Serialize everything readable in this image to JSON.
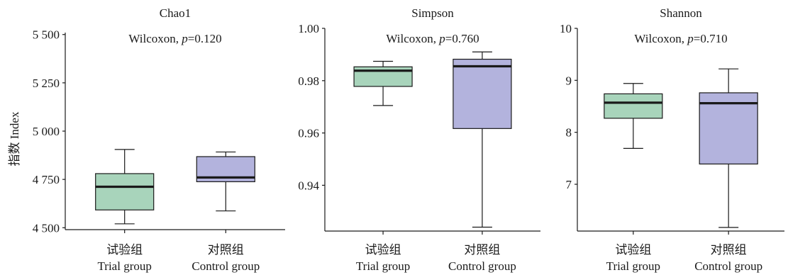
{
  "ylabel": "指数 Index",
  "colors": {
    "trial": "#a8d4bb",
    "control": "#b3b3dd",
    "ink": "#1a1a1a"
  },
  "groups": [
    {
      "cn": "试验组",
      "en": "Trial group"
    },
    {
      "cn": "对照组",
      "en": "Control group"
    }
  ],
  "chart_data": [
    {
      "type": "box",
      "title": "Chao1",
      "annotation_prefix": "Wilcoxon, ",
      "annotation_p_symbol": "p",
      "annotation_p_value": "=0.120",
      "ylim": [
        4490,
        5510
      ],
      "yticks": [
        4500,
        4750,
        5000,
        5250,
        5500
      ],
      "ytick_labels": [
        "4 500",
        "4 750",
        "5 000",
        "5 250",
        "5 500"
      ],
      "series": [
        {
          "whisker_low": 4520,
          "q1": 4592,
          "median": 4712,
          "q3": 4780,
          "whisker_high": 4905
        },
        {
          "whisker_low": 4587,
          "q1": 4738,
          "median": 4760,
          "q3": 4868,
          "whisker_high": 4892
        }
      ]
    },
    {
      "type": "box",
      "title": "Simpson",
      "annotation_prefix": "Wilcoxon, ",
      "annotation_p_symbol": "p",
      "annotation_p_value": "=0.760",
      "ylim": [
        0.9225,
        1.0
      ],
      "yticks": [
        0.94,
        0.96,
        0.98,
        1.0
      ],
      "ytick_labels": [
        "0.94",
        "0.96",
        "0.98",
        "1.00"
      ],
      "series": [
        {
          "whisker_low": 0.9705,
          "q1": 0.9778,
          "median": 0.9838,
          "q3": 0.9853,
          "whisker_high": 0.9874
        },
        {
          "whisker_low": 0.924,
          "q1": 0.9617,
          "median": 0.9855,
          "q3": 0.9882,
          "whisker_high": 0.991
        }
      ]
    },
    {
      "type": "box",
      "title": "Shannon",
      "annotation_prefix": "Wilcoxon, ",
      "annotation_p_symbol": "p",
      "annotation_p_value": "=0.710",
      "ylim": [
        6.1,
        10.0
      ],
      "yticks": [
        7,
        8,
        9,
        10
      ],
      "ytick_labels": [
        "7",
        "8",
        "9",
        "10"
      ],
      "series": [
        {
          "whisker_low": 7.69,
          "q1": 8.27,
          "median": 8.57,
          "q3": 8.74,
          "whisker_high": 8.94
        },
        {
          "whisker_low": 6.17,
          "q1": 7.39,
          "median": 8.56,
          "q3": 8.76,
          "whisker_high": 9.22
        }
      ]
    }
  ]
}
